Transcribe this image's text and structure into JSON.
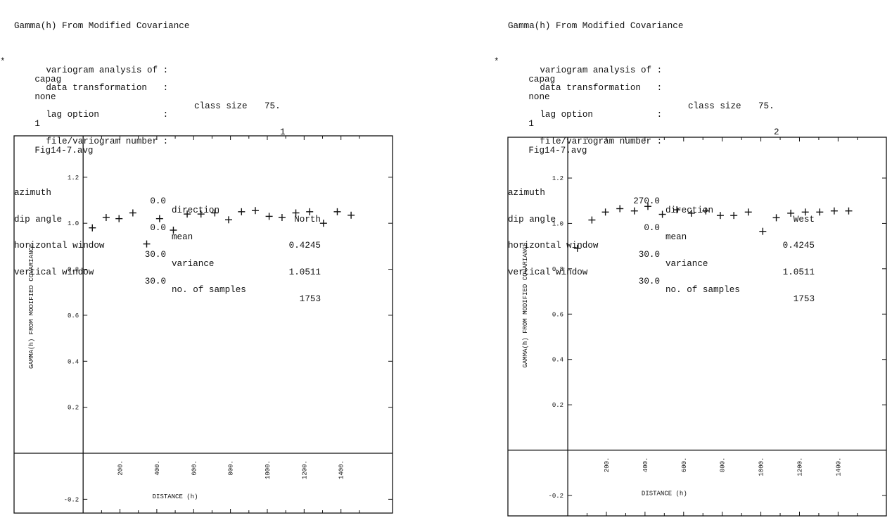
{
  "panels": [
    {
      "header": {
        "title": "Gamma(h) From Modified Covariance",
        "marker": "*",
        "rows": [
          {
            "label": "variogram analysis of :",
            "value": "capag"
          },
          {
            "label": "data transformation   :",
            "value": "none"
          },
          {
            "label": "lag option            :",
            "value": "1",
            "extra_label": "class size",
            "extra_value": "75."
          },
          {
            "label": "file/variogram number :",
            "value": "Fig14-7.avg",
            "extra_value": "1"
          }
        ],
        "params": [
          {
            "label": "azimuth",
            "value": "0.0",
            "label2": "direction",
            "value2": "North"
          },
          {
            "label": "dip angle",
            "value": "0.0",
            "label2": "mean",
            "value2": "0.4245"
          },
          {
            "label": "horizontal window",
            "value": "30.0",
            "label2": "variance",
            "value2": "1.0511"
          },
          {
            "label": "vertical window",
            "value": "30.0",
            "label2": "no. of samples",
            "value2": "1753"
          }
        ]
      },
      "chart_data": {
        "type": "scatter",
        "marker": "+",
        "xlabel": "DISTANCE (h)",
        "ylabel": "GAMMA(h) FROM MODIFIED COVARIANCE",
        "xlim": [
          -375,
          1680
        ],
        "ylim": [
          -0.26,
          1.38
        ],
        "xticks": [
          200,
          400,
          600,
          800,
          1000,
          1200,
          1400
        ],
        "xtick_labels": [
          "200.",
          "400.",
          "600.",
          "800.",
          "1000.",
          "1200.",
          "1400."
        ],
        "yticks": [
          -0.2,
          0.2,
          0.4,
          0.6,
          0.8,
          1.0,
          1.2
        ],
        "ytick_labels": [
          "-0.2",
          "0.2",
          "0.4",
          "0.6",
          "0.8",
          "1.0",
          "1.2"
        ],
        "x": [
          50,
          125,
          195,
          270,
          345,
          415,
          490,
          565,
          640,
          715,
          790,
          860,
          935,
          1010,
          1080,
          1155,
          1230,
          1305,
          1380,
          1455
        ],
        "y": [
          0.98,
          1.025,
          1.02,
          1.045,
          0.91,
          1.02,
          0.97,
          1.04,
          1.04,
          1.045,
          1.015,
          1.05,
          1.055,
          1.03,
          1.025,
          1.045,
          1.05,
          1.0,
          1.05,
          1.035
        ]
      }
    },
    {
      "header": {
        "title": "Gamma(h) From Modified Covariance",
        "marker": "*",
        "rows": [
          {
            "label": "variogram analysis of :",
            "value": "capag"
          },
          {
            "label": "data transformation   :",
            "value": "none"
          },
          {
            "label": "lag option            :",
            "value": "1",
            "extra_label": "class size",
            "extra_value": "75."
          },
          {
            "label": "file/variogram number :",
            "value": "Fig14-7.avg",
            "extra_value": "2"
          }
        ],
        "params": [
          {
            "label": "azimuth",
            "value": "270.0",
            "label2": "direction",
            "value2": "West"
          },
          {
            "label": "dip angle",
            "value": "0.0",
            "label2": "mean",
            "value2": "0.4245"
          },
          {
            "label": "horizontal window",
            "value": "30.0",
            "label2": "variance",
            "value2": "1.0511"
          },
          {
            "label": "vertical window",
            "value": "30.0",
            "label2": "no. of samples",
            "value2": "1753"
          }
        ]
      },
      "chart_data": {
        "type": "scatter",
        "marker": "+",
        "xlabel": "DISTANCE (h)",
        "ylabel": "GAMMA(h) FROM MODIFIED COVARIANCE",
        "xlim": [
          -310,
          1650
        ],
        "ylim": [
          -0.29,
          1.38
        ],
        "xticks": [
          200,
          400,
          600,
          800,
          1000,
          1200,
          1400
        ],
        "xtick_labels": [
          "200.",
          "400.",
          "600.",
          "800.",
          "1000.",
          "1200.",
          "1400."
        ],
        "yticks": [
          -0.2,
          0.2,
          0.4,
          0.6,
          0.8,
          1.0,
          1.2
        ],
        "ytick_labels": [
          "-0.2",
          "0.2",
          "0.4",
          "0.6",
          "0.8",
          "1.0",
          "1.2"
        ],
        "x": [
          50,
          125,
          195,
          270,
          345,
          415,
          490,
          565,
          640,
          715,
          790,
          860,
          935,
          1010,
          1080,
          1155,
          1230,
          1305,
          1380,
          1455
        ],
        "y": [
          0.89,
          1.015,
          1.05,
          1.065,
          1.055,
          1.075,
          1.04,
          1.06,
          1.045,
          1.055,
          1.035,
          1.035,
          1.05,
          0.965,
          1.025,
          1.045,
          1.05,
          1.05,
          1.055,
          1.055
        ]
      }
    }
  ]
}
